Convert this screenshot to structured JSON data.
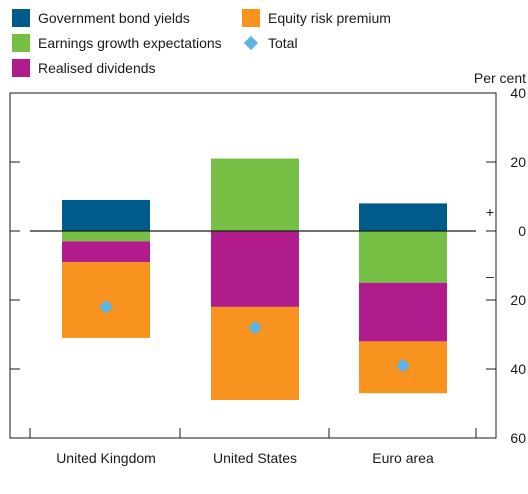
{
  "chart_data": {
    "type": "bar",
    "stacked": true,
    "categories": [
      "United Kingdom",
      "United States",
      "Euro area"
    ],
    "units_label": "Per cent",
    "ylim": [
      -60,
      40
    ],
    "y_ticks": [
      40,
      20,
      0,
      -20,
      -40,
      -60
    ],
    "y_tick_labels": [
      "40",
      "20",
      "0",
      "20",
      "40",
      "60"
    ],
    "sign_labels": {
      "positive": "+",
      "negative": "–"
    },
    "grid": false,
    "legend_position": "top",
    "series": [
      {
        "name": "Government bond yields",
        "color": "#005a8c",
        "values": [
          9,
          0,
          8
        ]
      },
      {
        "name": "Earnings growth expectations",
        "color": "#76bf45",
        "values": [
          -3,
          21,
          -15
        ]
      },
      {
        "name": "Realised dividends",
        "color": "#b01c8c",
        "values": [
          -6,
          -22,
          -17
        ]
      },
      {
        "name": "Equity risk premium",
        "color": "#f7931e",
        "values": [
          -22,
          -27,
          -15
        ]
      }
    ],
    "total": {
      "name": "Total",
      "color": "#5bb4e5",
      "values": [
        -22,
        -28,
        -39
      ]
    }
  }
}
